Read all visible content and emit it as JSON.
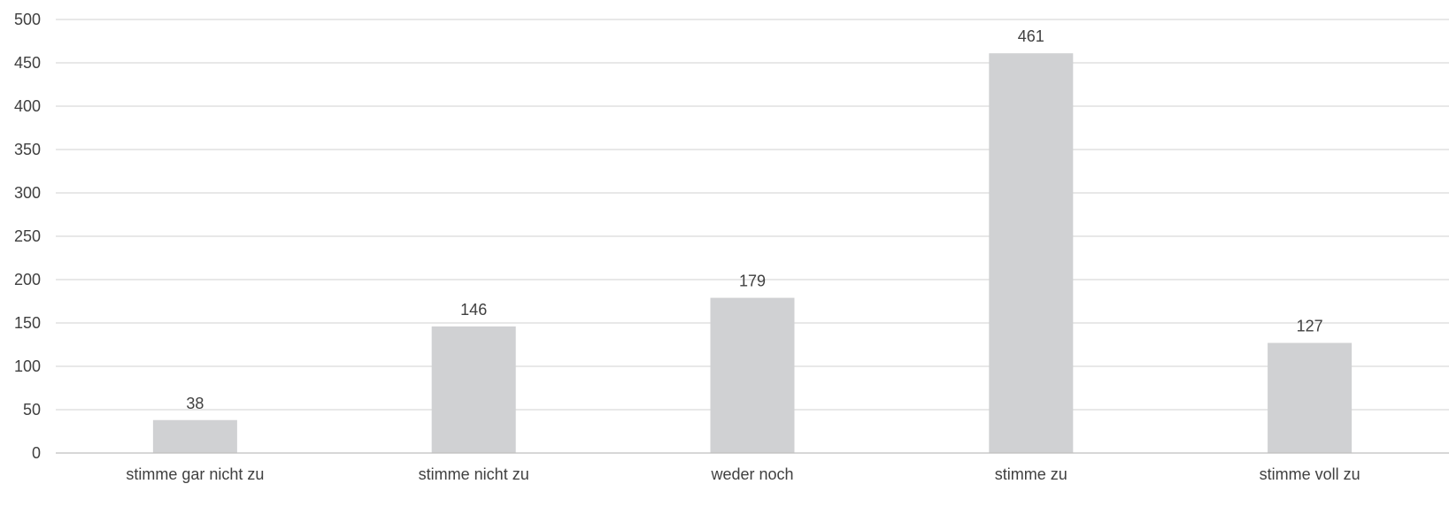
{
  "chart_data": {
    "type": "bar",
    "title": "",
    "xlabel": "",
    "ylabel": "",
    "categories": [
      "stimme gar nicht zu",
      "stimme nicht zu",
      "weder noch",
      "stimme zu",
      "stimme voll zu"
    ],
    "values": [
      38,
      146,
      179,
      461,
      127
    ],
    "ylim": [
      0,
      500
    ],
    "yticks": [
      0,
      50,
      100,
      150,
      200,
      250,
      300,
      350,
      400,
      450,
      500
    ],
    "grid": true,
    "legend": "none",
    "data_labels": true,
    "bar_color": "#d0d1d3",
    "text_color": "#404040",
    "grid_color": "#d9d9d9"
  }
}
